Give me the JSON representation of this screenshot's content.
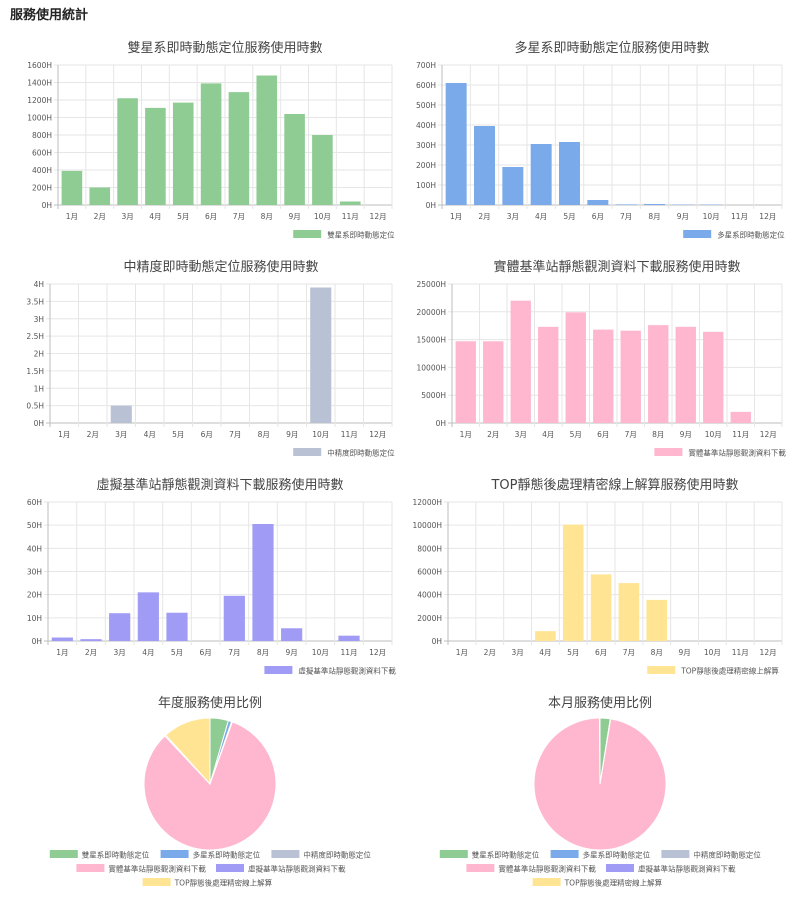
{
  "page": {
    "title": "服務使用統計"
  },
  "colors": {
    "green": "#8fcc93",
    "blue": "#7aaaea",
    "gray": "#b8c2d4",
    "pink": "#ffb6cf",
    "purple": "#a09cf5",
    "yellow": "#ffe493",
    "grid": "#e6e6e6",
    "axis": "#bdbdbd"
  },
  "chart_data": [
    {
      "type": "bar",
      "title": "雙星系即時動態定位服務使用時數",
      "categories": [
        "1月",
        "2月",
        "3月",
        "4月",
        "5月",
        "6月",
        "7月",
        "8月",
        "9月",
        "10月",
        "11月",
        "12月"
      ],
      "series": [
        {
          "name": "雙星系即時動態定位",
          "color": "#8fcc93",
          "values": [
            390,
            200,
            1220,
            1110,
            1170,
            1390,
            1290,
            1480,
            1040,
            800,
            40,
            0
          ]
        }
      ],
      "ylim": [
        0,
        1600
      ],
      "yticks": [
        "0H",
        "200H",
        "400H",
        "600H",
        "800H",
        "1000H",
        "1200H",
        "1400H",
        "1600H"
      ],
      "legend": "bottom-right"
    },
    {
      "type": "bar",
      "title": "多星系即時動態定位服務使用時數",
      "categories": [
        "1月",
        "2月",
        "3月",
        "4月",
        "5月",
        "6月",
        "7月",
        "8月",
        "9月",
        "10月",
        "11月",
        "12月"
      ],
      "series": [
        {
          "name": "多星系即時動態定位",
          "color": "#7aaaea",
          "values": [
            610,
            395,
            190,
            305,
            315,
            25,
            3,
            5,
            2,
            2,
            0,
            0
          ]
        }
      ],
      "ylim": [
        0,
        700
      ],
      "yticks": [
        "0H",
        "100H",
        "200H",
        "300H",
        "400H",
        "500H",
        "600H",
        "700H"
      ],
      "legend": "bottom-right"
    },
    {
      "type": "bar",
      "title": "中精度即時動態定位服務使用時數",
      "categories": [
        "1月",
        "2月",
        "3月",
        "4月",
        "5月",
        "6月",
        "7月",
        "8月",
        "9月",
        "10月",
        "11月",
        "12月"
      ],
      "series": [
        {
          "name": "中精度即時動態定位",
          "color": "#b8c2d4",
          "values": [
            0,
            0,
            0.5,
            0,
            0,
            0,
            0,
            0,
            0,
            3.9,
            0,
            0
          ]
        }
      ],
      "ylim": [
        0,
        4
      ],
      "yticks": [
        "0H",
        "0.5H",
        "1H",
        "1.5H",
        "2H",
        "2.5H",
        "3H",
        "3.5H",
        "4H"
      ],
      "legend": "bottom-right"
    },
    {
      "type": "bar",
      "title": "實體基準站靜態觀測資料下載服務使用時數",
      "categories": [
        "1月",
        "2月",
        "3月",
        "4月",
        "5月",
        "6月",
        "7月",
        "8月",
        "9月",
        "10月",
        "11月",
        "12月"
      ],
      "series": [
        {
          "name": "實體基準站靜態觀測資料下載",
          "color": "#ffb6cf",
          "values": [
            14700,
            14700,
            22000,
            17300,
            19900,
            16800,
            16600,
            17600,
            17300,
            16400,
            2000,
            0
          ]
        }
      ],
      "ylim": [
        0,
        25000
      ],
      "yticks": [
        "0H",
        "5000H",
        "10000H",
        "15000H",
        "20000H",
        "25000H"
      ],
      "legend": "bottom-right"
    },
    {
      "type": "bar",
      "title": "虛擬基準站靜態觀測資料下載服務使用時數",
      "categories": [
        "1月",
        "2月",
        "3月",
        "4月",
        "5月",
        "6月",
        "7月",
        "8月",
        "9月",
        "10月",
        "11月",
        "12月"
      ],
      "series": [
        {
          "name": "虛擬基準站靜態觀測資料下載",
          "color": "#a09cf5",
          "values": [
            1.5,
            0.8,
            12,
            21,
            12.2,
            0,
            19.5,
            50.5,
            5.5,
            0,
            2.3,
            0
          ]
        }
      ],
      "ylim": [
        0,
        60
      ],
      "yticks": [
        "0H",
        "10H",
        "20H",
        "30H",
        "40H",
        "50H",
        "60H"
      ],
      "legend": "bottom-right"
    },
    {
      "type": "bar",
      "title": "TOP靜態後處理精密線上解算服務使用時數",
      "categories": [
        "1月",
        "2月",
        "3月",
        "4月",
        "5月",
        "6月",
        "7月",
        "8月",
        "9月",
        "10月",
        "11月",
        "12月"
      ],
      "series": [
        {
          "name": "TOP靜態後處理精密線上解算",
          "color": "#ffe493",
          "values": [
            0,
            0,
            0,
            850,
            10050,
            5750,
            5000,
            3550,
            0,
            0,
            0,
            0
          ]
        }
      ],
      "ylim": [
        0,
        12000
      ],
      "yticks": [
        "0H",
        "2000H",
        "4000H",
        "6000H",
        "8000H",
        "10000H",
        "12000H"
      ],
      "legend": "bottom-right"
    },
    {
      "type": "pie",
      "title": "年度服務使用比例",
      "labels": [
        "雙星系即時動態定位",
        "多星系即時動態定位",
        "中精度即時動態定位",
        "實體基準站靜態觀測資料下載",
        "虛擬基準站靜態觀測資料下載",
        "TOP靜態後處理精密線上解算"
      ],
      "colors": [
        "#8fcc93",
        "#7aaaea",
        "#b8c2d4",
        "#ffb6cf",
        "#a09cf5",
        "#ffe493"
      ],
      "values": [
        4.5,
        0.8,
        0.2,
        82.5,
        0.3,
        11.7
      ],
      "legend": "bottom"
    },
    {
      "type": "pie",
      "title": "本月服務使用比例",
      "labels": [
        "雙星系即時動態定位",
        "多星系即時動態定位",
        "中精度即時動態定位",
        "實體基準站靜態觀測資料下載",
        "虛擬基準站靜態觀測資料下載",
        "TOP靜態後處理精密線上解算"
      ],
      "colors": [
        "#8fcc93",
        "#7aaaea",
        "#b8c2d4",
        "#ffb6cf",
        "#a09cf5",
        "#ffe493"
      ],
      "values": [
        2.5,
        0.1,
        0,
        97.3,
        0.1,
        0
      ],
      "legend": "bottom"
    }
  ]
}
